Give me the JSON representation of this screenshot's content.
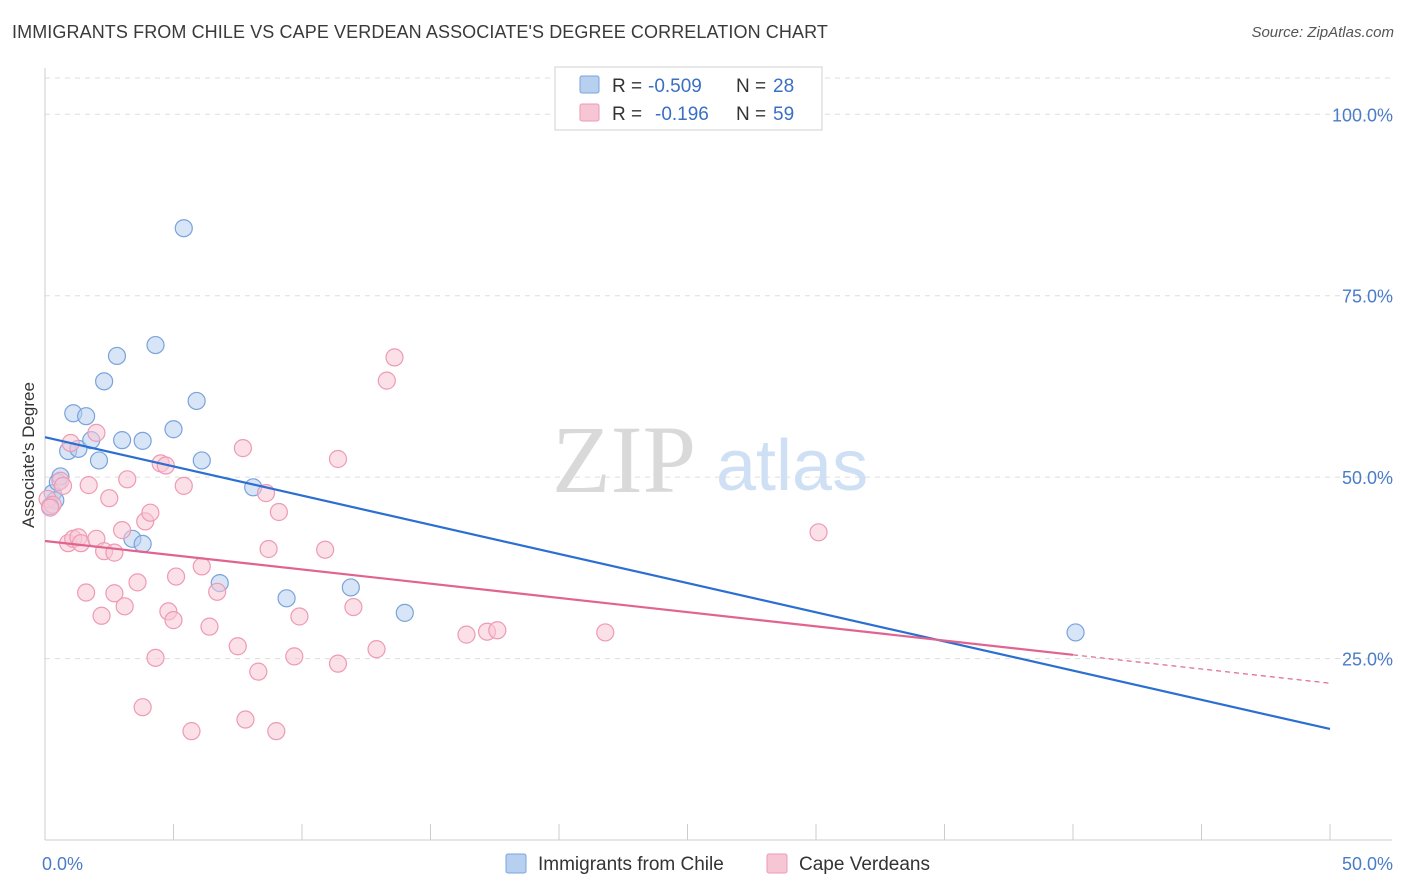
{
  "title": "IMMIGRANTS FROM CHILE VS CAPE VERDEAN ASSOCIATE'S DEGREE CORRELATION CHART",
  "source": "Source: ZipAtlas.com",
  "watermark": {
    "zip": "ZIP",
    "atlas": "atlas"
  },
  "colors": {
    "blue_fill": "#b7d0f0",
    "blue_stroke": "#7aa3db",
    "blue_line": "#2b6fd1",
    "pink_fill": "#f7c6d5",
    "pink_stroke": "#ee9ab4",
    "pink_line": "#e0648f",
    "grid": "#dddddd",
    "tick_text": "#4a7cc8"
  },
  "legend": {
    "rows": [
      {
        "r_label": "R =",
        "r_value": "-0.509",
        "n_label": "N =",
        "n_value": "28"
      },
      {
        "r_label": "R =",
        "r_value": "-0.196",
        "n_label": "N =",
        "n_value": "59"
      }
    ]
  },
  "chart_data": {
    "type": "scatter",
    "ylabel": "Associate's Degree",
    "xlim": [
      0,
      50
    ],
    "ylim": [
      0,
      105
    ],
    "x_tick_labels": [
      {
        "value": 0,
        "label": "0.0%"
      },
      {
        "value": 50,
        "label": "50.0%"
      }
    ],
    "y_tick_labels": [
      {
        "value": 100,
        "label": "100.0%"
      },
      {
        "value": 75,
        "label": "75.0%"
      },
      {
        "value": 50,
        "label": "50.0%"
      },
      {
        "value": 25,
        "label": "25.0%"
      }
    ],
    "series": [
      {
        "name": "Immigrants from Chile",
        "color_key": "blue",
        "trend": {
          "x": [
            0,
            50
          ],
          "y": [
            55.5,
            15.3
          ],
          "dashed_after": null
        },
        "points": [
          [
            0.3,
            47.8
          ],
          [
            0.4,
            46.8
          ],
          [
            0.5,
            49.3
          ],
          [
            0.6,
            50.1
          ],
          [
            0.9,
            53.6
          ],
          [
            1.1,
            58.8
          ],
          [
            1.3,
            53.9
          ],
          [
            1.6,
            58.4
          ],
          [
            1.8,
            55.1
          ],
          [
            2.1,
            52.3
          ],
          [
            2.3,
            63.2
          ],
          [
            2.8,
            66.7
          ],
          [
            3.0,
            55.1
          ],
          [
            3.4,
            41.5
          ],
          [
            3.8,
            40.8
          ],
          [
            3.8,
            55.0
          ],
          [
            4.3,
            68.2
          ],
          [
            5.0,
            56.6
          ],
          [
            5.4,
            84.3
          ],
          [
            5.9,
            60.5
          ],
          [
            6.1,
            52.3
          ],
          [
            6.8,
            35.4
          ],
          [
            8.1,
            48.6
          ],
          [
            9.4,
            33.3
          ],
          [
            11.9,
            34.8
          ],
          [
            14.0,
            31.3
          ],
          [
            40.1,
            28.6
          ],
          [
            0.2,
            46.0
          ]
        ]
      },
      {
        "name": "Cape Verdeans",
        "color_key": "pink",
        "trend": {
          "x": [
            0,
            50
          ],
          "y": [
            41.2,
            21.6
          ],
          "solid_until": 40
        },
        "points": [
          [
            0.1,
            47.0
          ],
          [
            0.3,
            46.2
          ],
          [
            0.6,
            49.5
          ],
          [
            0.7,
            48.8
          ],
          [
            0.9,
            40.9
          ],
          [
            1.0,
            54.7
          ],
          [
            1.1,
            41.5
          ],
          [
            1.3,
            41.7
          ],
          [
            1.4,
            40.9
          ],
          [
            1.6,
            34.1
          ],
          [
            1.7,
            48.9
          ],
          [
            2.0,
            56.1
          ],
          [
            2.0,
            41.5
          ],
          [
            2.2,
            30.9
          ],
          [
            2.3,
            39.8
          ],
          [
            2.5,
            47.1
          ],
          [
            2.7,
            39.6
          ],
          [
            2.7,
            34.0
          ],
          [
            3.0,
            42.7
          ],
          [
            3.1,
            32.2
          ],
          [
            3.2,
            49.7
          ],
          [
            3.6,
            35.5
          ],
          [
            3.8,
            18.3
          ],
          [
            3.9,
            43.9
          ],
          [
            4.1,
            45.1
          ],
          [
            4.3,
            25.1
          ],
          [
            4.5,
            51.9
          ],
          [
            4.7,
            51.6
          ],
          [
            4.8,
            31.5
          ],
          [
            5.0,
            30.3
          ],
          [
            5.1,
            36.3
          ],
          [
            5.4,
            48.8
          ],
          [
            5.7,
            15.0
          ],
          [
            6.1,
            37.7
          ],
          [
            6.4,
            29.4
          ],
          [
            6.7,
            34.2
          ],
          [
            7.5,
            26.7
          ],
          [
            7.7,
            54.0
          ],
          [
            7.8,
            16.6
          ],
          [
            8.3,
            23.2
          ],
          [
            8.6,
            47.8
          ],
          [
            8.7,
            40.1
          ],
          [
            9.1,
            45.2
          ],
          [
            9.0,
            15.0
          ],
          [
            9.7,
            25.3
          ],
          [
            9.9,
            30.8
          ],
          [
            10.9,
            40.0
          ],
          [
            11.4,
            52.5
          ],
          [
            11.4,
            24.3
          ],
          [
            12.0,
            32.1
          ],
          [
            12.9,
            26.3
          ],
          [
            13.3,
            63.3
          ],
          [
            13.6,
            66.5
          ],
          [
            16.4,
            28.3
          ],
          [
            17.2,
            28.7
          ],
          [
            17.6,
            28.9
          ],
          [
            21.8,
            28.6
          ],
          [
            30.1,
            42.4
          ],
          [
            0.2,
            45.8
          ]
        ]
      }
    ],
    "bottom_legend": [
      "Immigrants from Chile",
      "Cape Verdeans"
    ]
  }
}
